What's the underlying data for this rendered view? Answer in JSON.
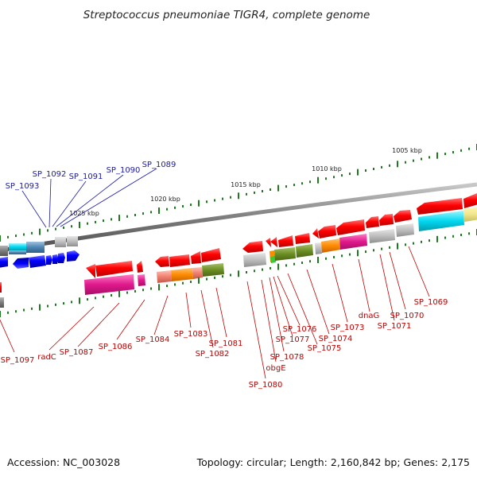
{
  "title": "Streptococcus pneumoniae TIGR4, complete genome",
  "footer": {
    "accession": "Accession: NC_003028",
    "summary": "Topology: circular; Length: 2,160,842 bp; Genes: 2,175"
  },
  "scale_labels": [
    "1005 kbp",
    "1010 kbp",
    "1015 kbp",
    "1020 kbp",
    "1025 kbp"
  ],
  "gene_labels_blue": [
    "SP_1093",
    "SP_1092",
    "SP_1091",
    "SP_1090",
    "SP_1089"
  ],
  "gene_labels_red": [
    "SP_1097",
    "radC",
    "SP_1087",
    "SP_1086",
    "SP_1084",
    "SP_1083",
    "SP_1082",
    "SP_1081",
    "SP_1080",
    "obgE",
    "SP_1078",
    "SP_1077",
    "SP_1076",
    "SP_1075",
    "SP_1074",
    "SP_1073",
    "dnaG",
    "SP_1071",
    "SP_1070",
    "SP_1069"
  ],
  "colors": {
    "backbone": "#7d7d7d",
    "plus_strand_gene": "#ff0000",
    "minus_strand_gene": "#0000ff",
    "scale_tick": "#1f7a1f",
    "label_plus": "#c00000",
    "label_minus": "#1a1aa8"
  }
}
